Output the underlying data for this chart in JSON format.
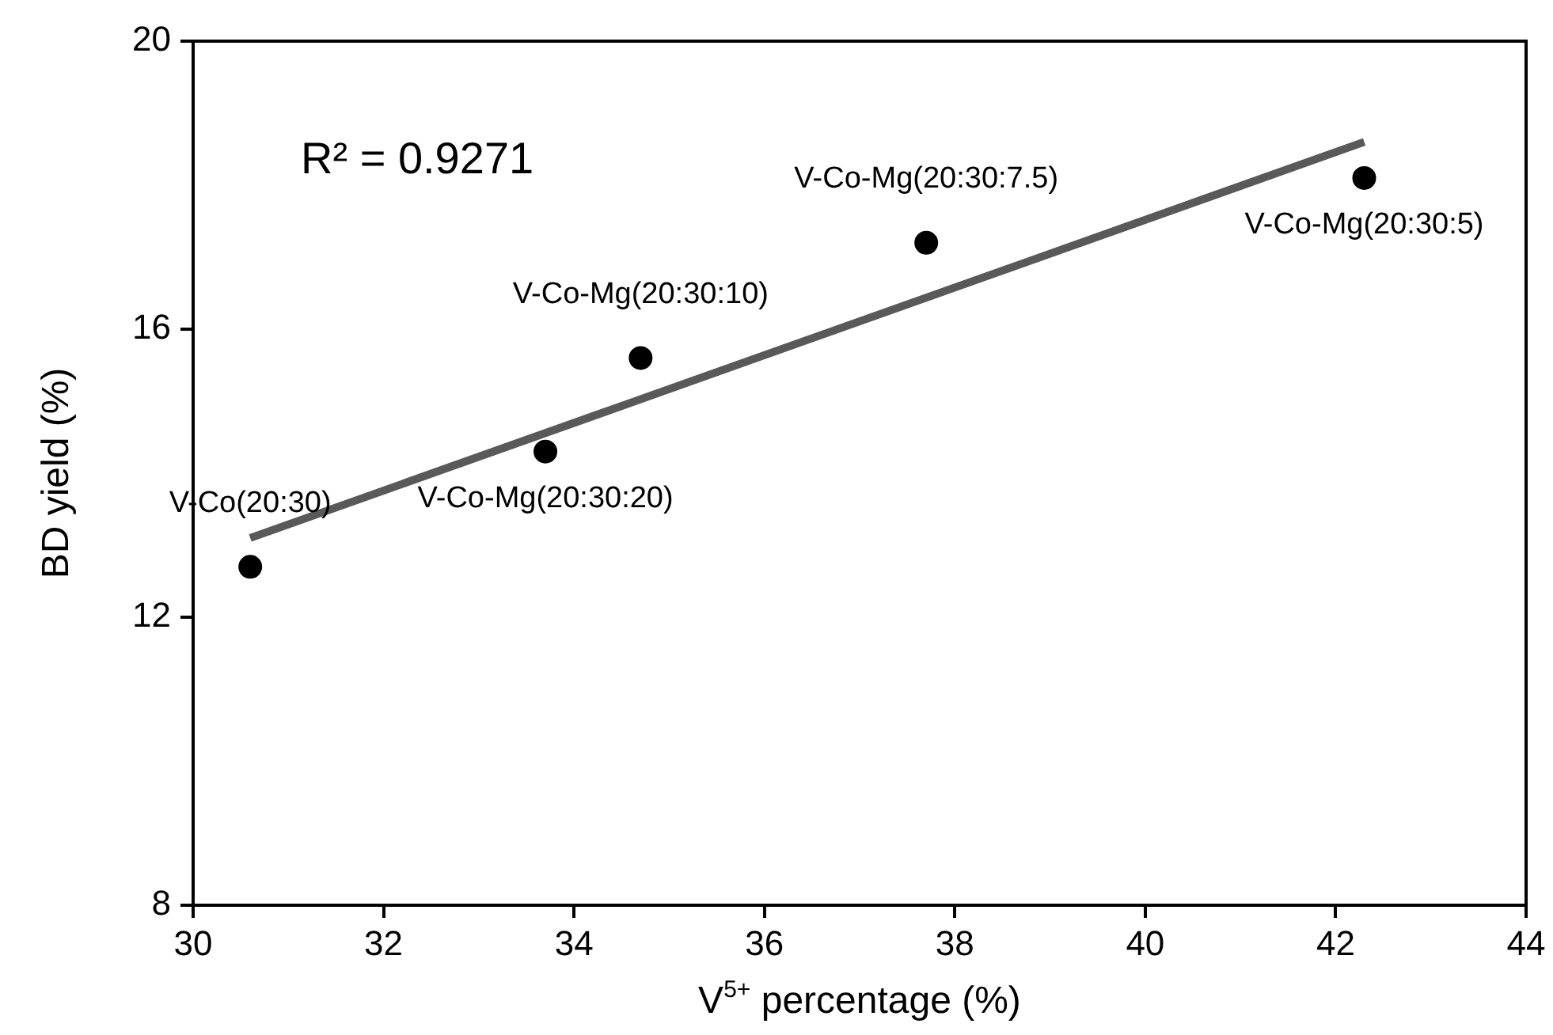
{
  "chart_data": {
    "type": "scatter",
    "xlabel": "V$^{5+}$ percentage (%)",
    "ylabel": "BD yield (%)",
    "x": [
      30.6,
      33.7,
      34.7,
      37.7,
      42.3
    ],
    "series": [
      {
        "color": "#000000",
        "marker": "circle",
        "values": [
          12.7,
          14.3,
          15.6,
          17.2,
          18.1
        ]
      },
      {
        "type": "line",
        "color": "#595959",
        "marker": "none",
        "x": [
          30.6,
          42.3
        ],
        "values": [
          13.1,
          18.6
        ]
      }
    ],
    "xlim": [
      30,
      44
    ],
    "xticks": [
      30,
      32,
      34,
      36,
      38,
      40,
      42,
      44
    ],
    "ylim": [
      8,
      20
    ],
    "yticks": [
      8,
      12,
      16,
      20
    ],
    "grid": false,
    "legend": false,
    "annotations": [
      "R² = 0.9271",
      {
        "text": "V-Co(20:30)",
        "x": 30.6,
        "y": 12.7
      },
      {
        "text": "V-Co-Mg(20:30:20)",
        "x": 33.7,
        "y": 14.3
      },
      {
        "text": "V-Co-Mg(20:30:10)",
        "x": 34.7,
        "y": 15.6
      },
      {
        "text": "V-Co-Mg(20:30:7.5)",
        "x": 37.7,
        "y": 17.2
      },
      {
        "text": "V-Co-Mg(20:30:5)",
        "x": 42.3,
        "y": 18.1
      }
    ]
  }
}
